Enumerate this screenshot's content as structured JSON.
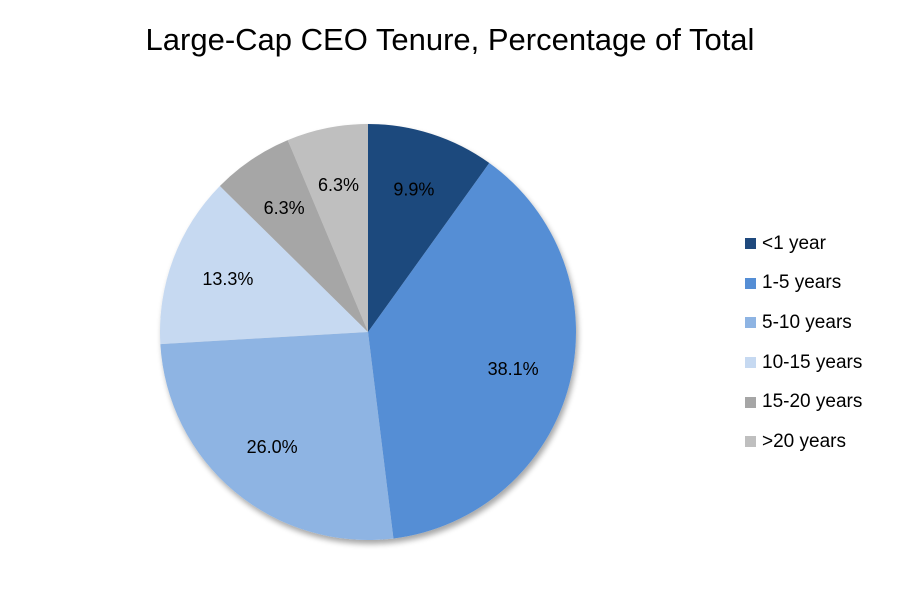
{
  "chart_data": {
    "type": "pie",
    "title": "Large-Cap CEO Tenure, Percentage of Total",
    "categories": [
      "<1 year",
      "1-5 years",
      "5-10 years",
      "10-15 years",
      "15-20 years",
      ">20 years"
    ],
    "values": [
      9.9,
      38.1,
      26.0,
      13.3,
      6.3,
      6.3
    ],
    "data_labels": [
      "9.9%",
      "38.1%",
      "26.0%",
      "13.3%",
      "6.3%",
      "6.3%"
    ],
    "colors": [
      "#1f497d",
      "#558ed5",
      "#8eb4e3",
      "#c6d9f1",
      "#a6a6a6",
      "#bfbfbf"
    ],
    "start_angle": "12 o'clock",
    "direction": "clockwise",
    "legend_position": "right"
  }
}
